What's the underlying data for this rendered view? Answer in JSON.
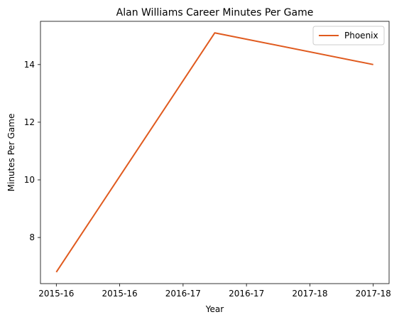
{
  "chart_data": {
    "type": "line",
    "title": "Alan Williams  Career Minutes Per Game",
    "xlabel": "Year",
    "ylabel": "Minutes Per Game",
    "categories": [
      "2015-16",
      "2016-17",
      "2017-18"
    ],
    "x_tick_labels": [
      "2015-16",
      "2015-16",
      "2016-17",
      "2016-17",
      "2017-18",
      "2017-18"
    ],
    "y_ticks": [
      8,
      10,
      12,
      14
    ],
    "ylim": [
      6.4,
      15.5
    ],
    "grid": false,
    "legend_position": "top-right",
    "series": [
      {
        "name": "Phoenix",
        "color": "#e05a1e",
        "values": [
          6.8,
          15.1,
          14.0
        ]
      }
    ]
  }
}
